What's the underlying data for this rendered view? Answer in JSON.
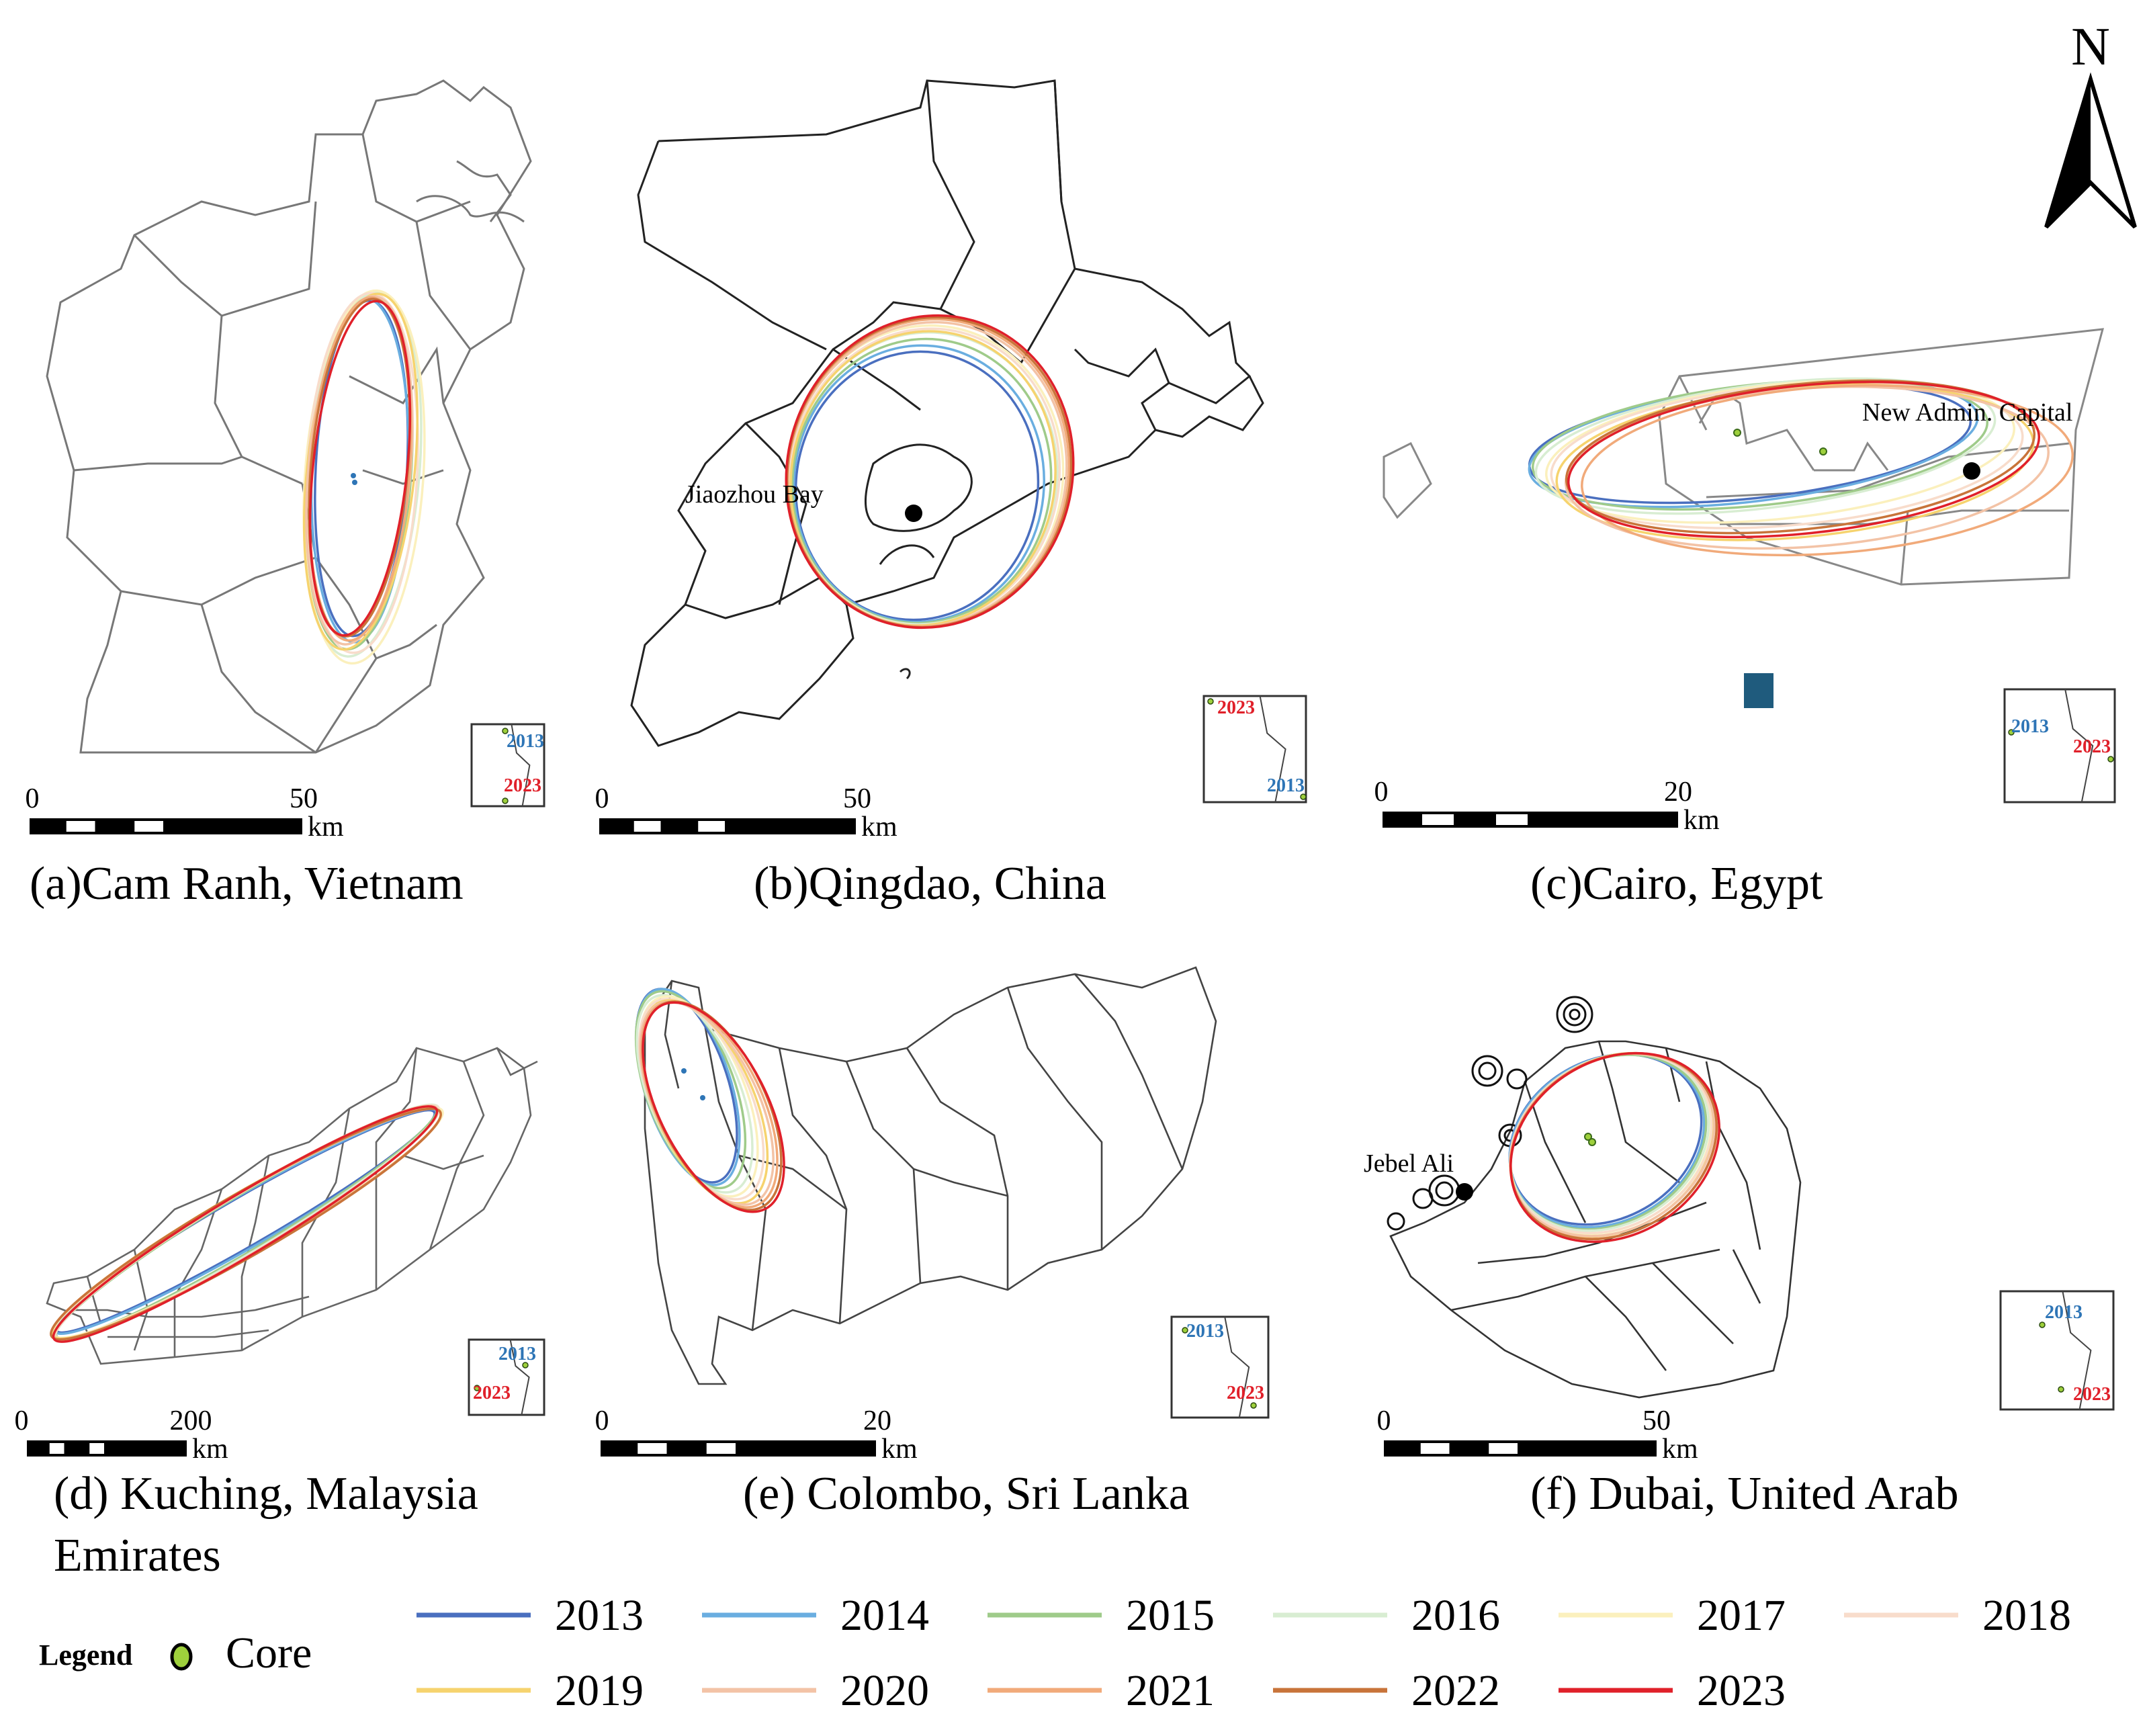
{
  "north_arrow": {
    "label": "N"
  },
  "panels": [
    {
      "id": "a",
      "caption": [
        "(a)Cam Ranh, Vietnam"
      ],
      "scale": {
        "ticks": [
          "0",
          "50"
        ],
        "unit": "km"
      },
      "inset": {
        "y2013": "2013",
        "y2023": "2023"
      },
      "place": ""
    },
    {
      "id": "b",
      "caption": [
        "(b)Qingdao, China"
      ],
      "scale": {
        "ticks": [
          "0",
          "50"
        ],
        "unit": "km"
      },
      "inset": {
        "y2013": "2013",
        "y2023": "2023"
      },
      "place": "Jiaozhou Bay"
    },
    {
      "id": "c",
      "caption": [
        "(c)Cairo, Egypt"
      ],
      "scale": {
        "ticks": [
          "0",
          "20"
        ],
        "unit": "km"
      },
      "inset": {
        "y2013": "2013",
        "y2023": "2023"
      },
      "place": "New Admin. Capital"
    },
    {
      "id": "d",
      "caption": [
        "(d) Kuching, Malaysia",
        "Emirates"
      ],
      "scale": {
        "ticks": [
          "0",
          "200"
        ],
        "unit": "km"
      },
      "inset": {
        "y2013": "2013",
        "y2023": "2023"
      },
      "place": ""
    },
    {
      "id": "e",
      "caption": [
        "(e) Colombo, Sri Lanka"
      ],
      "scale": {
        "ticks": [
          "0",
          "20"
        ],
        "unit": "km"
      },
      "inset": {
        "y2013": "2013",
        "y2023": "2023"
      },
      "place": ""
    },
    {
      "id": "f",
      "caption": [
        "(f) Dubai, United Arab"
      ],
      "scale": {
        "ticks": [
          "0",
          "50"
        ],
        "unit": "km"
      },
      "inset": {
        "y2013": "2013",
        "y2023": "2023"
      },
      "place": "Jebel Ali"
    }
  ],
  "inset_colors": {
    "y2013": "#2e75b6",
    "y2023": "#e0202a"
  },
  "legend": {
    "title": "Legend",
    "core_label": "Core",
    "core_color": "#9ed03c",
    "years": [
      {
        "label": "2013",
        "color": "#4a6fbf"
      },
      {
        "label": "2014",
        "color": "#6aaee0"
      },
      {
        "label": "2015",
        "color": "#9fcb8a"
      },
      {
        "label": "2016",
        "color": "#d8edd2"
      },
      {
        "label": "2017",
        "color": "#fbf0bd"
      },
      {
        "label": "2018",
        "color": "#f8dccb"
      },
      {
        "label": "2019",
        "color": "#f6d36e"
      },
      {
        "label": "2020",
        "color": "#f3c3a6"
      },
      {
        "label": "2021",
        "color": "#f1aa7a"
      },
      {
        "label": "2022",
        "color": "#c8743a"
      },
      {
        "label": "2023",
        "color": "#e0202a"
      }
    ]
  }
}
